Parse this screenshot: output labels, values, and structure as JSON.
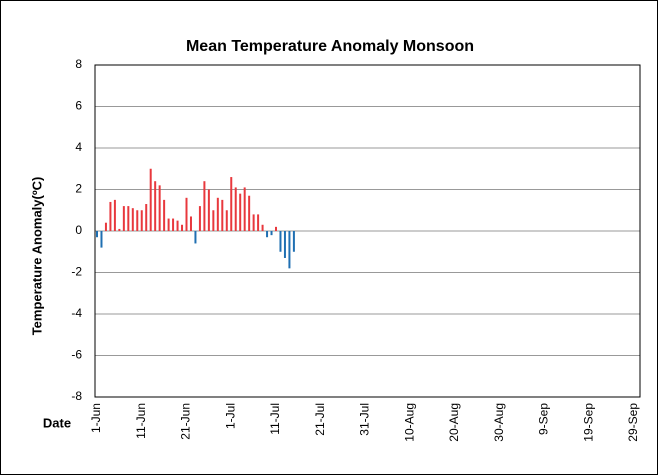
{
  "chart_data": {
    "type": "bar",
    "title": "Mean Temperature Anomaly Monsoon",
    "y_label": "Temperature Anomaly(ºC)",
    "x_label": "Date",
    "categories": [
      "1-Jun",
      null,
      null,
      null,
      null,
      null,
      null,
      null,
      null,
      null,
      "11-Jun",
      null,
      null,
      null,
      null,
      null,
      null,
      null,
      null,
      null,
      "21-Jun",
      null,
      null,
      null,
      null,
      null,
      null,
      null,
      null,
      null,
      "1-Jul",
      null,
      null,
      null,
      null,
      null,
      null,
      null,
      null,
      null,
      "11-Jul",
      null,
      null,
      null,
      null,
      null,
      null,
      null,
      null,
      null,
      "21-Jul",
      null,
      null,
      null,
      null,
      null,
      null,
      null,
      null,
      null,
      "31-Jul",
      null,
      null,
      null,
      null,
      null,
      null,
      null,
      null,
      null,
      "10-Aug",
      null,
      null,
      null,
      null,
      null,
      null,
      null,
      null,
      null,
      "20-Aug",
      null,
      null,
      null,
      null,
      null,
      null,
      null,
      null,
      null,
      "30-Aug",
      null,
      null,
      null,
      null,
      null,
      null,
      null,
      null,
      null,
      "9-Sep",
      null,
      null,
      null,
      null,
      null,
      null,
      null,
      null,
      null,
      "19-Sep",
      null,
      null,
      null,
      null,
      null,
      null,
      null,
      null,
      null,
      "29-Sep"
    ],
    "values": [
      -0.3,
      -0.8,
      0.4,
      1.4,
      1.5,
      0.1,
      1.2,
      1.2,
      1.1,
      1.0,
      1.0,
      1.3,
      3.0,
      2.4,
      2.2,
      1.5,
      0.6,
      0.6,
      0.5,
      0.3,
      1.6,
      0.7,
      -0.6,
      1.2,
      2.4,
      2.0,
      1.0,
      1.6,
      1.5,
      1.0,
      2.6,
      2.1,
      1.8,
      2.1,
      1.7,
      0.8,
      0.8,
      0.3,
      -0.3,
      -0.2,
      0.2,
      -1.0,
      -1.3,
      -1.8,
      -1.0,
      null,
      null,
      null,
      null,
      null,
      null,
      null,
      null,
      null,
      null,
      null,
      null,
      null,
      null,
      null,
      null,
      null,
      null,
      null,
      null,
      null,
      null,
      null,
      null,
      null,
      null,
      null,
      null,
      null,
      null,
      null,
      null,
      null,
      null,
      null,
      null,
      null,
      null,
      null,
      null,
      null,
      null,
      null,
      null,
      null,
      null,
      null,
      null,
      null,
      null,
      null,
      null,
      null,
      null,
      null,
      null,
      null,
      null,
      null,
      null,
      null,
      null,
      null,
      null,
      null,
      null,
      null,
      null,
      null,
      null,
      null,
      null,
      null,
      null,
      null,
      null
    ],
    "positive_color": "#e8383d",
    "negative_color": "#1f6fb2",
    "ylim": [
      -8,
      8
    ],
    "yticks": [
      -8,
      -6,
      -4,
      -2,
      0,
      2,
      4,
      6,
      8
    ],
    "grid": true
  }
}
